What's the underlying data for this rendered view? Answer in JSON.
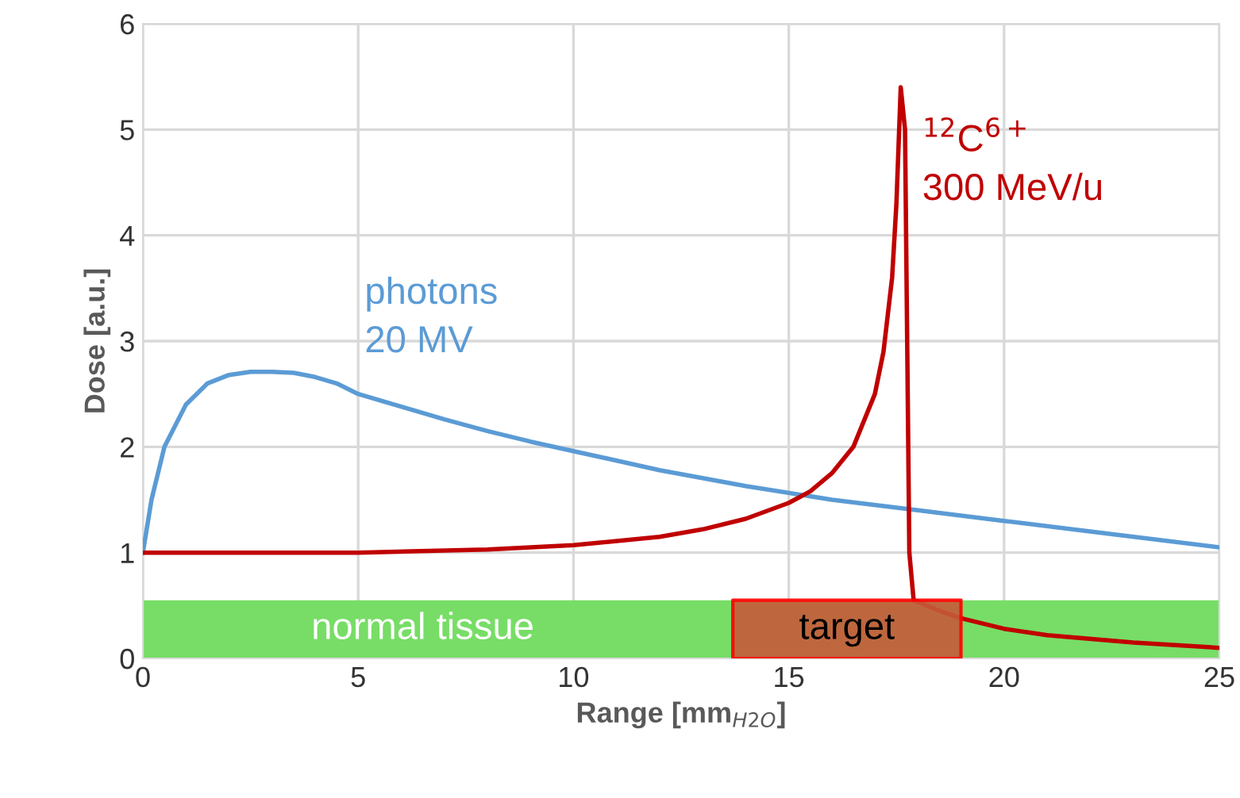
{
  "chart_data": {
    "type": "line",
    "xlabel": "Range [mm$_{H2O}$]",
    "ylabel": "Dose [a.u.]",
    "xlim": [
      0,
      25
    ],
    "ylim": [
      0,
      6
    ],
    "xticks": [
      0,
      5,
      10,
      15,
      20,
      25
    ],
    "yticks": [
      0,
      1,
      2,
      3,
      4,
      5,
      6
    ],
    "grid": true,
    "marker": "none",
    "line_style": "solid",
    "series": [
      {
        "name": "photons\n20 MV",
        "color": "#5b9bd5",
        "x": [
          0,
          0.2,
          0.5,
          1,
          1.5,
          2,
          2.5,
          3,
          3.5,
          4,
          4.5,
          5,
          6,
          7,
          8,
          9,
          10,
          12,
          14,
          16,
          18,
          20,
          22,
          25
        ],
        "values": [
          1,
          1.5,
          2.0,
          2.4,
          2.6,
          2.68,
          2.71,
          2.71,
          2.7,
          2.66,
          2.6,
          2.5,
          2.38,
          2.26,
          2.15,
          2.05,
          1.96,
          1.78,
          1.63,
          1.5,
          1.4,
          1.3,
          1.2,
          1.05
        ]
      },
      {
        "name": "$^{12}$C$^{6+}$\n300 MeV/u",
        "color": "#c00000",
        "x": [
          0,
          5,
          8,
          10,
          12,
          13,
          14,
          15,
          15.5,
          16,
          16.5,
          17,
          17.2,
          17.4,
          17.5,
          17.6,
          17.7,
          17.75,
          17.8,
          17.9,
          18.5,
          19,
          20,
          21,
          23,
          25
        ],
        "values": [
          1,
          1.0,
          1.03,
          1.07,
          1.15,
          1.22,
          1.32,
          1.47,
          1.58,
          1.75,
          2.0,
          2.5,
          2.9,
          3.6,
          4.3,
          5.4,
          5.0,
          3.0,
          1.0,
          0.55,
          0.45,
          0.38,
          0.28,
          0.22,
          0.15,
          0.1
        ]
      }
    ],
    "bands": [
      {
        "axis": "y",
        "from": 0,
        "to": 0.55,
        "label": "normal tissue",
        "color": "#77dd66"
      },
      {
        "axis": "x",
        "from": 13.7,
        "to": 19,
        "label": "target",
        "color": "#c55a3a"
      }
    ]
  }
}
